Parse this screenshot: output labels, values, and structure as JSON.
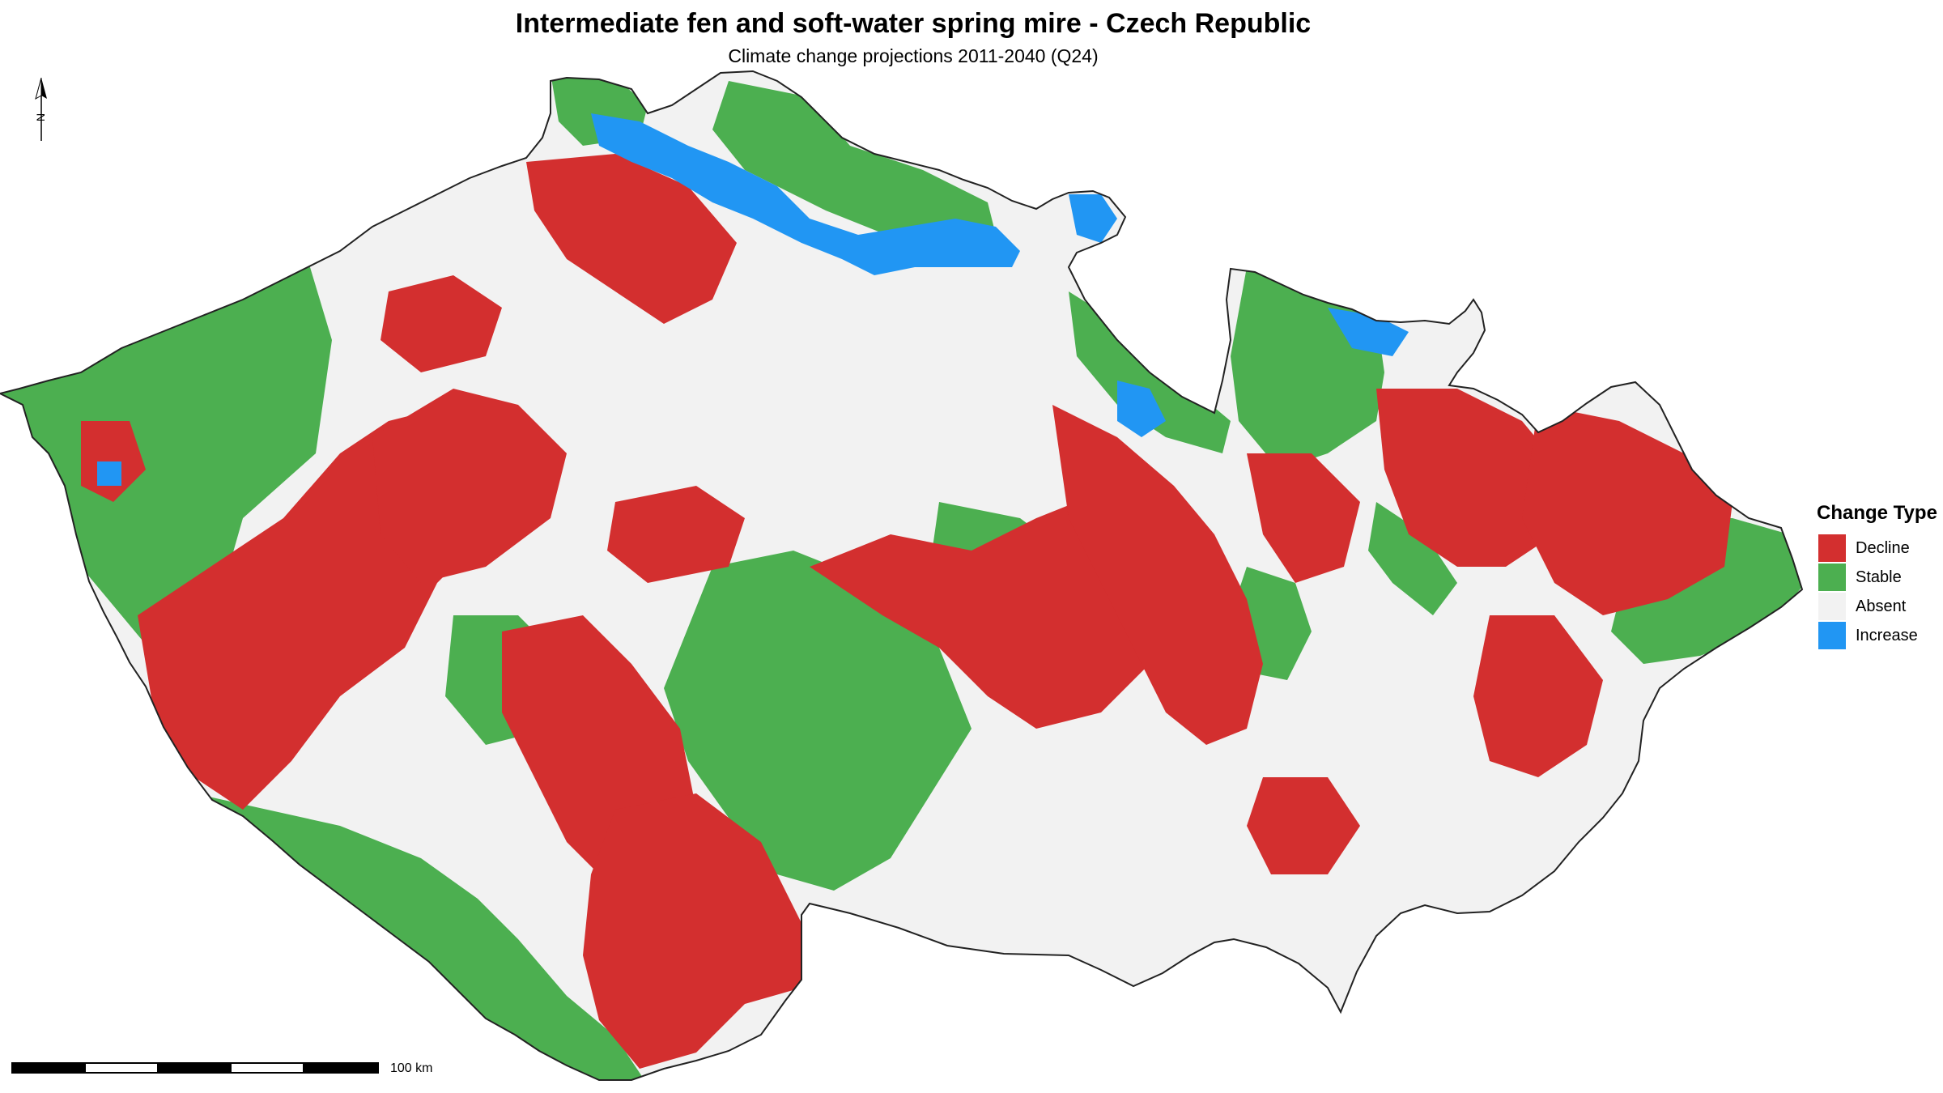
{
  "map": {
    "title": "Intermediate fen and soft-water spring mire - Czech Republic",
    "subtitle": "Climate change projections 2011-2040 (Q24)",
    "north_arrow_label": "N",
    "scale_label": "100 km",
    "colors": {
      "decline": "#d32f2f",
      "stable": "#4caf50",
      "absent": "#f2f2f2",
      "increase": "#2196f3",
      "border": "#222222"
    }
  },
  "legend": {
    "title": "Change Type",
    "items": [
      {
        "label": "Decline",
        "color": "#d32f2f"
      },
      {
        "label": "Stable",
        "color": "#4caf50"
      },
      {
        "label": "Absent",
        "color": "#f2f2f2"
      },
      {
        "label": "Increase",
        "color": "#2196f3"
      }
    ]
  }
}
